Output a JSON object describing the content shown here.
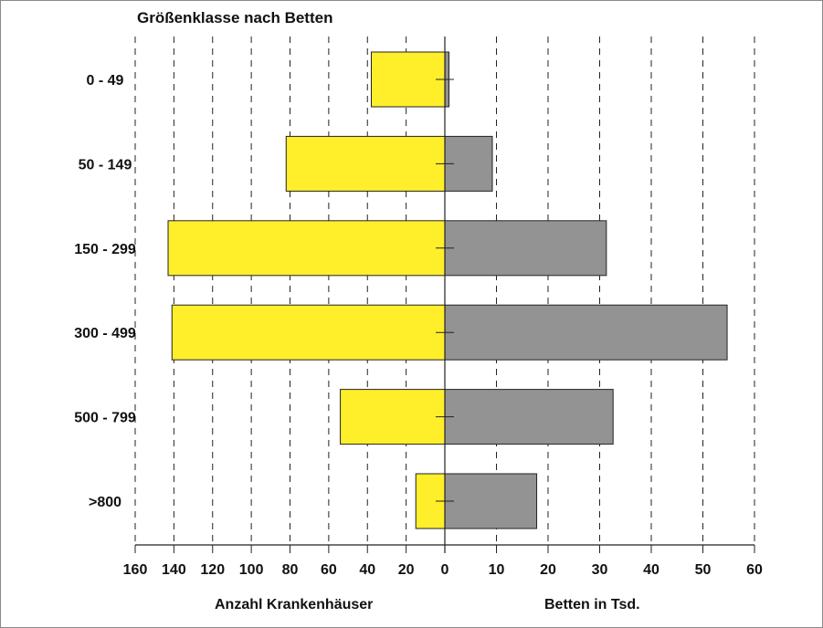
{
  "chart_data": {
    "type": "bar",
    "title": "Größenklasse nach Betten",
    "categories": [
      "0 - 49",
      "50 - 149",
      "150 - 299",
      "300 - 499",
      "500 - 799",
      ">800"
    ],
    "left_panel": {
      "xlabel": "Anzahl Krankenhäuser",
      "xlim": [
        160,
        0
      ],
      "ticks": [
        "160",
        "140",
        "120",
        "100",
        "80",
        "60",
        "40",
        "20",
        "0"
      ],
      "series": [
        {
          "values": [
            38,
            82,
            143,
            141,
            54,
            15
          ],
          "color": "#ffef2a"
        }
      ]
    },
    "right_panel": {
      "xlabel": "Betten in Tsd.",
      "xlim": [
        0,
        60
      ],
      "ticks": [
        "10",
        "20",
        "30",
        "40",
        "50",
        "60"
      ],
      "series": [
        {
          "values": [
            0.8,
            9.2,
            31.3,
            54.7,
            32.6,
            17.8
          ],
          "color": "#939393"
        }
      ]
    },
    "grid": true,
    "grid_style": "dashed"
  }
}
